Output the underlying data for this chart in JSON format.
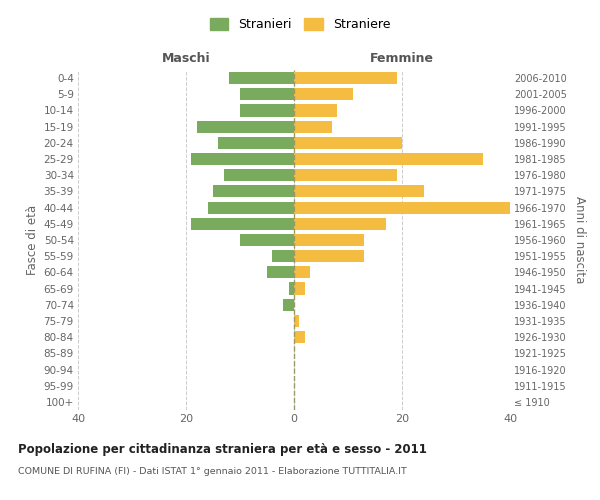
{
  "age_groups": [
    "100+",
    "95-99",
    "90-94",
    "85-89",
    "80-84",
    "75-79",
    "70-74",
    "65-69",
    "60-64",
    "55-59",
    "50-54",
    "45-49",
    "40-44",
    "35-39",
    "30-34",
    "25-29",
    "20-24",
    "15-19",
    "10-14",
    "5-9",
    "0-4"
  ],
  "birth_years": [
    "≤ 1910",
    "1911-1915",
    "1916-1920",
    "1921-1925",
    "1926-1930",
    "1931-1935",
    "1936-1940",
    "1941-1945",
    "1946-1950",
    "1951-1955",
    "1956-1960",
    "1961-1965",
    "1966-1970",
    "1971-1975",
    "1976-1980",
    "1981-1985",
    "1986-1990",
    "1991-1995",
    "1996-2000",
    "2001-2005",
    "2006-2010"
  ],
  "maschi": [
    0,
    0,
    0,
    0,
    0,
    0,
    2,
    1,
    5,
    4,
    10,
    19,
    16,
    15,
    13,
    19,
    14,
    18,
    10,
    10,
    12
  ],
  "femmine": [
    0,
    0,
    0,
    0,
    2,
    1,
    0,
    2,
    3,
    13,
    13,
    17,
    40,
    24,
    19,
    35,
    20,
    7,
    8,
    11,
    19
  ],
  "color_maschi": "#7aaa5d",
  "color_femmine": "#f5bc42",
  "title": "Popolazione per cittadinanza straniera per età e sesso - 2011",
  "subtitle": "COMUNE DI RUFINA (FI) - Dati ISTAT 1° gennaio 2011 - Elaborazione TUTTITALIA.IT",
  "xlabel_left": "Maschi",
  "xlabel_right": "Femmine",
  "ylabel_left": "Fasce di età",
  "ylabel_right": "Anni di nascita",
  "legend_maschi": "Stranieri",
  "legend_femmine": "Straniere",
  "xlim": 40,
  "background_color": "#ffffff",
  "grid_color": "#cccccc"
}
